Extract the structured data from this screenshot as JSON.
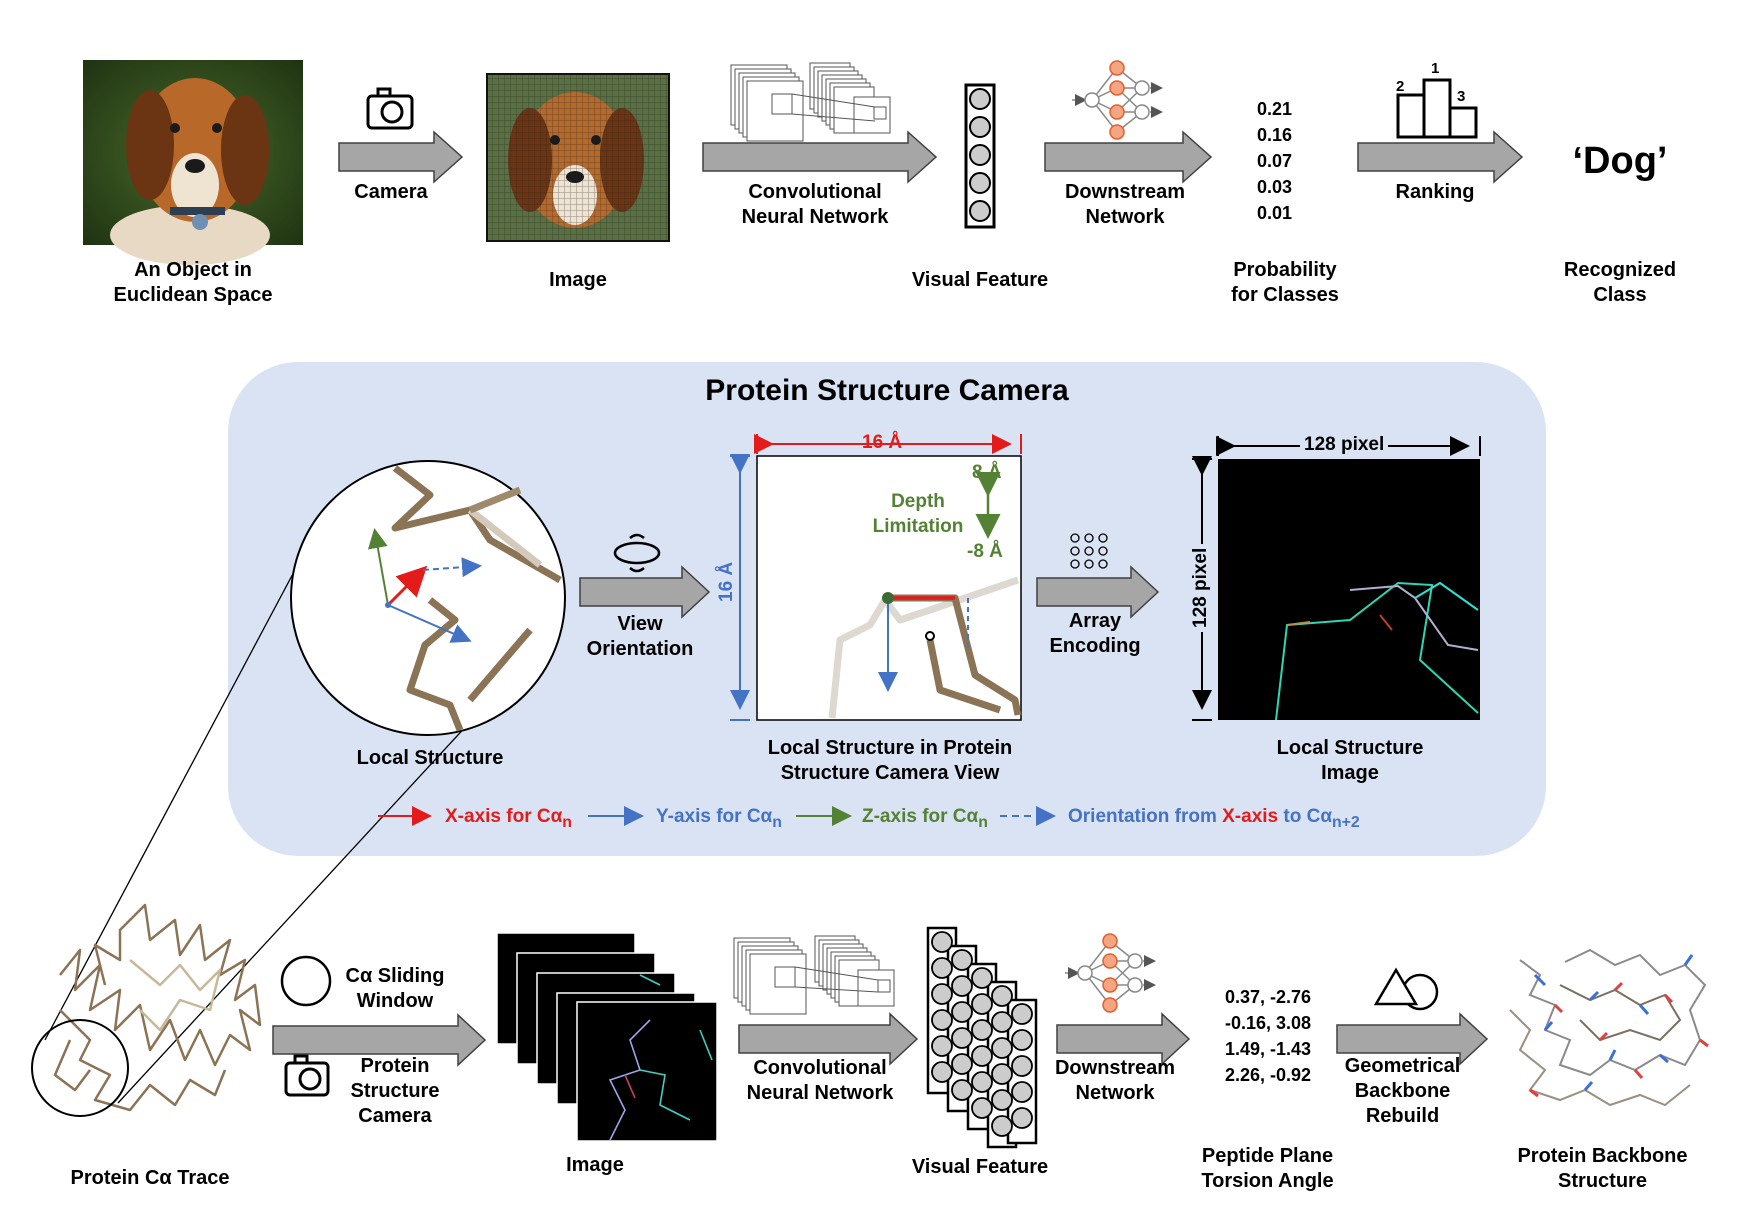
{
  "top": {
    "object_label": "An Object in\nEuclidean Space",
    "camera_label": "Camera",
    "image_label": "Image",
    "cnn_label": "Convolutional\nNeural Network",
    "visual_feature_label": "Visual Feature",
    "downstream_label": "Downstream\nNetwork",
    "probabilities": "0.21\n0.16\n0.07\n0.03\n0.01",
    "probability_label": "Probability\nfor Classes",
    "ranking_label": "Ranking",
    "rank_numbers": [
      "2",
      "1",
      "3"
    ],
    "recognized_value": "‘Dog’",
    "recognized_label": "Recognized\nClass"
  },
  "panel": {
    "title": "Protein Structure Camera",
    "local_structure_label": "Local Structure",
    "view_orientation_label": "View\nOrientation",
    "width_dim": "16 Å",
    "height_dim": "16 Å",
    "depth_top": "8 Å",
    "depth_bottom": "-8 Å",
    "depth_label": "Depth\nLimitation",
    "camera_view_label": "Local Structure in Protein\nStructure Camera View",
    "array_encoding_label": "Array\nEncoding",
    "pixel_width": "128 pixel",
    "pixel_height": "128 pixel",
    "local_image_label": "Local Structure\nImage",
    "legend": {
      "x_axis": "X-axis for Cα",
      "x_sub": "n",
      "y_axis": "Y-axis for Cα",
      "y_sub": "n",
      "z_axis": "Z-axis for Cα",
      "z_sub": "n",
      "orient_pre": "Orientation from ",
      "orient_x": "X-axis",
      "orient_post": " to Cα",
      "orient_sub": "n+2"
    }
  },
  "bottom": {
    "trace_label": "Protein Cα Trace",
    "sliding_label": "Cα Sliding\nWindow",
    "camera_label": "Protein\nStructure\nCamera",
    "image_label": "Image",
    "cnn_label": "Convolutional\nNeural Network",
    "visual_feature_label": "Visual Feature",
    "downstream_label": "Downstream\nNetwork",
    "angles": "0.37, -2.76\n-0.16, 3.08\n1.49, -1.43\n2.26, -0.92",
    "torsion_label": "Peptide Plane\nTorsion Angle",
    "rebuild_label": "Geometrical\nBackbone\nRebuild",
    "backbone_label": "Protein Backbone\nStructure"
  },
  "colors": {
    "panel_bg": "#d9e3f3",
    "arrow_fill": "#a6a6a6",
    "x_axis": "#e31b1b",
    "y_axis": "#4472c4",
    "z_axis": "#548235",
    "backbone": "#8b7355"
  },
  "icons": [
    "camera-icon",
    "rotate-icon",
    "dot-grid-icon",
    "neural-network-icon",
    "podium-icon",
    "shape-icon",
    "circle-icon"
  ]
}
